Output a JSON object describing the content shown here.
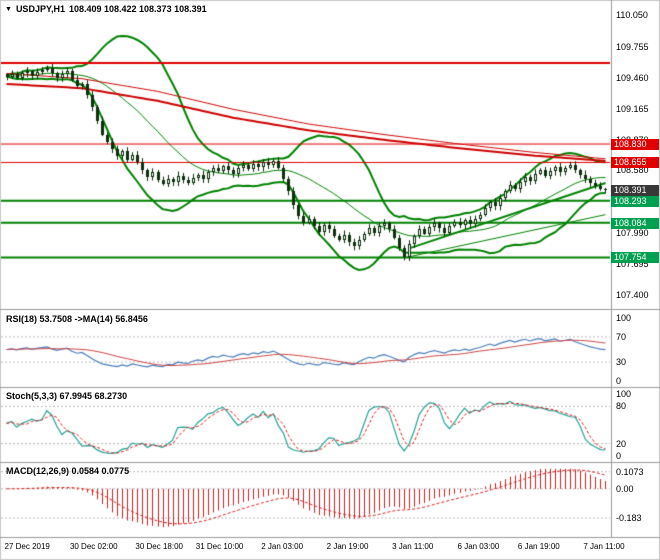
{
  "header": {
    "marker": "▼",
    "symbol": "USDJPY,H1",
    "ohlc": "108.409 108.422 108.373 108.391"
  },
  "colors": {
    "background": "#ffffff",
    "panel_border": "#9a9a9a",
    "candle": "#0e2f0e",
    "grid_dotted": "#bbbbbb",
    "text": "#000000"
  },
  "time_axis": {
    "labels": [
      {
        "text": "27 Dec 2019",
        "bar": 0
      },
      {
        "text": "30 Dec 02:00",
        "bar": 13
      },
      {
        "text": "30 Dec 18:00",
        "bar": 26
      },
      {
        "text": "31 Dec 10:00",
        "bar": 38
      },
      {
        "text": "2 Jan 03:00",
        "bar": 51
      },
      {
        "text": "2 Jan 19:00",
        "bar": 64
      },
      {
        "text": "3 Jan 11:00",
        "bar": 77
      },
      {
        "text": "6 Jan 03:00",
        "bar": 90
      },
      {
        "text": "6 Jan 19:00",
        "bar": 102
      },
      {
        "text": "7 Jan 11:00",
        "bar": 115
      }
    ]
  },
  "chart_data": [
    {
      "id": "main",
      "type": "candlestick",
      "symbol": "USDJPY",
      "timeframe": "H1",
      "current_ohlc": {
        "open": 108.409,
        "high": 108.422,
        "low": 108.373,
        "close": 108.391
      },
      "price_axis_range": [
        107.35,
        110.14
      ],
      "closes": [
        109.47,
        109.49,
        109.46,
        109.5,
        109.52,
        109.48,
        109.51,
        109.53,
        109.55,
        109.5,
        109.46,
        109.49,
        109.52,
        109.44,
        109.38,
        109.4,
        109.3,
        109.18,
        109.05,
        108.92,
        108.85,
        108.78,
        108.72,
        108.76,
        108.68,
        108.73,
        108.66,
        108.58,
        108.52,
        108.56,
        108.49,
        108.45,
        108.5,
        108.47,
        108.53,
        108.49,
        108.46,
        108.51,
        108.54,
        108.5,
        108.56,
        108.6,
        108.57,
        108.62,
        108.58,
        108.55,
        108.6,
        108.63,
        108.59,
        108.64,
        108.61,
        108.66,
        108.63,
        108.67,
        108.6,
        108.5,
        108.38,
        108.25,
        108.15,
        108.08,
        108.12,
        108.05,
        108.0,
        108.06,
        108.02,
        107.96,
        107.92,
        107.97,
        107.9,
        107.86,
        107.92,
        107.98,
        108.03,
        107.99,
        108.05,
        108.08,
        108.02,
        107.94,
        107.84,
        107.76,
        107.88,
        107.96,
        108.02,
        107.98,
        108.04,
        108.08,
        108.03,
        107.99,
        108.05,
        108.09,
        108.06,
        108.11,
        108.07,
        108.12,
        108.16,
        108.22,
        108.28,
        108.24,
        108.32,
        108.38,
        108.44,
        108.4,
        108.47,
        108.52,
        108.48,
        108.55,
        108.58,
        108.53,
        108.57,
        108.61,
        108.56,
        108.6,
        108.63,
        108.58,
        108.54,
        108.5,
        108.46,
        108.43,
        108.4,
        108.391
      ],
      "bollinger": {
        "period": 20,
        "deviation": 2,
        "color": "#008000"
      },
      "ma_lines": [
        {
          "color": "#cc0000",
          "width": 2,
          "points": [
            [
              0,
              109.4
            ],
            [
              15,
              109.36
            ],
            [
              30,
              109.24
            ],
            [
              45,
              109.08
            ],
            [
              60,
              108.96
            ],
            [
              75,
              108.87
            ],
            [
              90,
              108.79
            ],
            [
              105,
              108.72
            ],
            [
              119,
              108.67
            ]
          ]
        },
        {
          "color": "#cc0000",
          "width": 1,
          "points": [
            [
              0,
              109.5
            ],
            [
              15,
              109.45
            ],
            [
              30,
              109.33
            ],
            [
              45,
              109.16
            ],
            [
              60,
              109.02
            ],
            [
              75,
              108.92
            ],
            [
              90,
              108.83
            ],
            [
              105,
              108.75
            ],
            [
              119,
              108.69
            ]
          ]
        }
      ],
      "trendlines": [
        {
          "color": "#008000",
          "width": 2,
          "from": [
            80,
            107.84
          ],
          "to": [
            119,
            108.46
          ]
        },
        {
          "color": "#008000",
          "width": 1,
          "from": [
            79,
            107.75
          ],
          "to": [
            119,
            108.16
          ]
        }
      ],
      "horizontal_lines": [
        {
          "price": 109.6,
          "color": "#e00000",
          "width": 2
        },
        {
          "price": 108.83,
          "color": "#e00000",
          "width": 1
        },
        {
          "price": 108.655,
          "color": "#e00000",
          "width": 1
        },
        {
          "price": 108.293,
          "color": "#008000",
          "width": 2
        },
        {
          "price": 108.084,
          "color": "#008000",
          "width": 2
        },
        {
          "price": 107.754,
          "color": "#008000",
          "width": 2
        }
      ],
      "axis_labels": [
        {
          "text": "110.050",
          "price": 110.05
        },
        {
          "text": "109.755",
          "price": 109.755
        },
        {
          "text": "109.460",
          "price": 109.46
        },
        {
          "text": "109.165",
          "price": 109.165
        },
        {
          "text": "108.870",
          "price": 108.87
        },
        {
          "text": "108.580",
          "price": 108.58
        },
        {
          "text": "107.990",
          "price": 107.99
        },
        {
          "text": "107.695",
          "price": 107.695
        },
        {
          "text": "107.400",
          "price": 107.4
        }
      ],
      "price_badges": [
        {
          "text": "108.830",
          "price": 108.83,
          "bg": "#e00000"
        },
        {
          "text": "108.655",
          "price": 108.655,
          "bg": "#e00000"
        },
        {
          "text": "108.391",
          "price": 108.391,
          "bg": "#383838"
        },
        {
          "text": "108.293",
          "price": 108.293,
          "bg": "#00a050"
        },
        {
          "text": "108.084",
          "price": 108.084,
          "bg": "#00a050"
        },
        {
          "text": "107.754",
          "price": 107.754,
          "bg": "#00a050"
        }
      ]
    },
    {
      "id": "rsi",
      "type": "line",
      "label": "RSI(18) 53.7508  ->MA(14) 56.8456",
      "period": 18,
      "value": 53.7508,
      "ma_period": 14,
      "ma_value": 56.8456,
      "range": [
        0,
        100
      ],
      "dotted_levels": [
        70,
        30
      ],
      "line_color": "#4a7ebb",
      "ma_color": "#cc4444",
      "scale_labels": [
        {
          "text": "100",
          "v": 100
        },
        {
          "text": "70",
          "v": 70
        },
        {
          "text": "30",
          "v": 30
        },
        {
          "text": "0",
          "v": 0
        }
      ]
    },
    {
      "id": "stoch",
      "type": "line",
      "label": "Stoch(5,3,3) 67.9945 68.2730",
      "k_value": 67.9945,
      "d_value": 68.273,
      "range": [
        0,
        100
      ],
      "dotted_levels": [
        80,
        20
      ],
      "line_color": "#2aa198",
      "signal_color": "#dd2222",
      "scale_labels": [
        {
          "text": "100",
          "v": 100
        },
        {
          "text": "80",
          "v": 80
        },
        {
          "text": "20",
          "v": 20
        },
        {
          "text": "0",
          "v": 0
        }
      ]
    },
    {
      "id": "macd",
      "type": "bar",
      "label": "MACD(12,26,9) 0.0584 0.0775",
      "macd_value": 0.0584,
      "signal_value": 0.0775,
      "dotted_levels": [
        0.1073,
        0,
        -0.183
      ],
      "hist_color": "#cc2222",
      "signal_color": "#dd2222",
      "scale_labels": [
        {
          "text": "0.1073",
          "v": 0.1073
        },
        {
          "text": "0.00",
          "v": 0
        },
        {
          "text": "-0.183",
          "v": -0.183
        }
      ]
    }
  ]
}
